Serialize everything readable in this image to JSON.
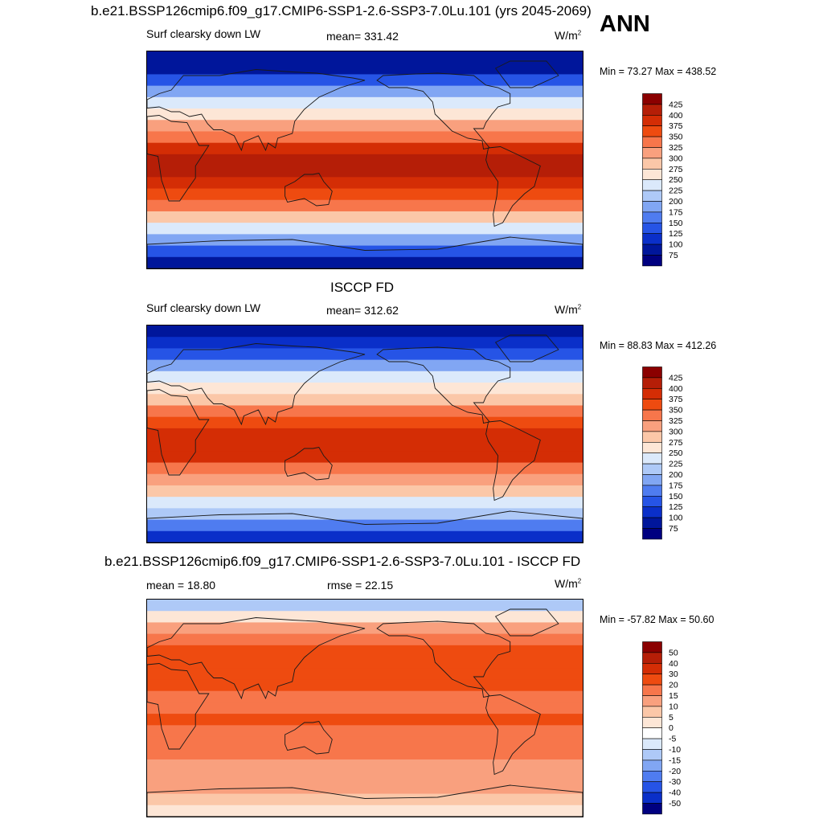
{
  "chart_data": [
    {
      "type": "heatmap",
      "title": "b.e21.BSSP126cmip6.f09_g17.CMIP6-SSP1-2.6-SSP3-7.0Lu.101 (yrs 2045-2069)",
      "season": "ANN",
      "variable": "Surf clearsky down LW",
      "stat_label": "mean= 331.42",
      "units": "W/m",
      "units_sup": "2",
      "minmax": "Min =  73.27 Max = 438.52",
      "colorbar_levels": [
        "425",
        "400",
        "375",
        "350",
        "325",
        "300",
        "275",
        "250",
        "225",
        "200",
        "175",
        "150",
        "125",
        "100",
        "75"
      ],
      "colorbar_colors": [
        "#8b0000",
        "#b51e07",
        "#d42d05",
        "#ee4b10",
        "#f7764b",
        "#f9a07e",
        "#fbc7a8",
        "#fde6d6",
        "#dbe9fb",
        "#aec9f7",
        "#81a6f3",
        "#4f7cf0",
        "#2654e6",
        "#0a2fc9",
        "#00169b",
        "#000080"
      ],
      "ref_values": [
        80,
        100,
        150,
        200,
        240,
        270,
        310,
        350,
        380,
        410,
        420,
        400,
        370,
        330,
        290,
        250,
        200,
        150,
        100
      ]
    },
    {
      "type": "heatmap",
      "title": "ISCCP FD",
      "variable": "Surf clearsky down LW",
      "stat_label": "mean= 312.62",
      "units": "W/m",
      "units_sup": "2",
      "minmax": "Min =  88.83 Max = 412.26",
      "colorbar_levels": [
        "425",
        "400",
        "375",
        "350",
        "325",
        "300",
        "275",
        "250",
        "225",
        "200",
        "175",
        "150",
        "125",
        "100",
        "75"
      ],
      "colorbar_colors": [
        "#8b0000",
        "#b51e07",
        "#d42d05",
        "#ee4b10",
        "#f7764b",
        "#f9a07e",
        "#fbc7a8",
        "#fde6d6",
        "#dbe9fb",
        "#aec9f7",
        "#81a6f3",
        "#4f7cf0",
        "#2654e6",
        "#0a2fc9",
        "#00169b",
        "#000080"
      ],
      "ref_values": [
        95,
        110,
        150,
        190,
        230,
        260,
        295,
        330,
        360,
        385,
        395,
        380,
        350,
        315,
        280,
        245,
        205,
        165,
        120
      ]
    },
    {
      "type": "heatmap",
      "title": "b.e21.BSSP126cmip6.f09_g17.CMIP6-SSP1-2.6-SSP3-7.0Lu.101 - ISCCP FD",
      "stat_label": "rmse =  22.15",
      "left_label": "mean =  18.80",
      "units": "W/m",
      "units_sup": "2",
      "minmax": "Min = -57.82 Max =  50.60",
      "colorbar_levels": [
        "50",
        "40",
        "30",
        "20",
        "15",
        "10",
        "5",
        "0",
        "-5",
        "-10",
        "-15",
        "-20",
        "-30",
        "-40",
        "-50"
      ],
      "colorbar_colors": [
        "#8b0000",
        "#b51e07",
        "#d42d05",
        "#ee4b10",
        "#f7764b",
        "#f9a07e",
        "#fbc7a8",
        "#fde6d6",
        "#ffffff",
        "#dbe9fb",
        "#aec9f7",
        "#81a6f3",
        "#4f7cf0",
        "#2654e6",
        "#0a2fc9",
        "#000080"
      ],
      "ref_values": [
        -10,
        5,
        15,
        20,
        22,
        25,
        25,
        22,
        20,
        20,
        22,
        20,
        18,
        18,
        15,
        15,
        12,
        10,
        5
      ]
    }
  ]
}
